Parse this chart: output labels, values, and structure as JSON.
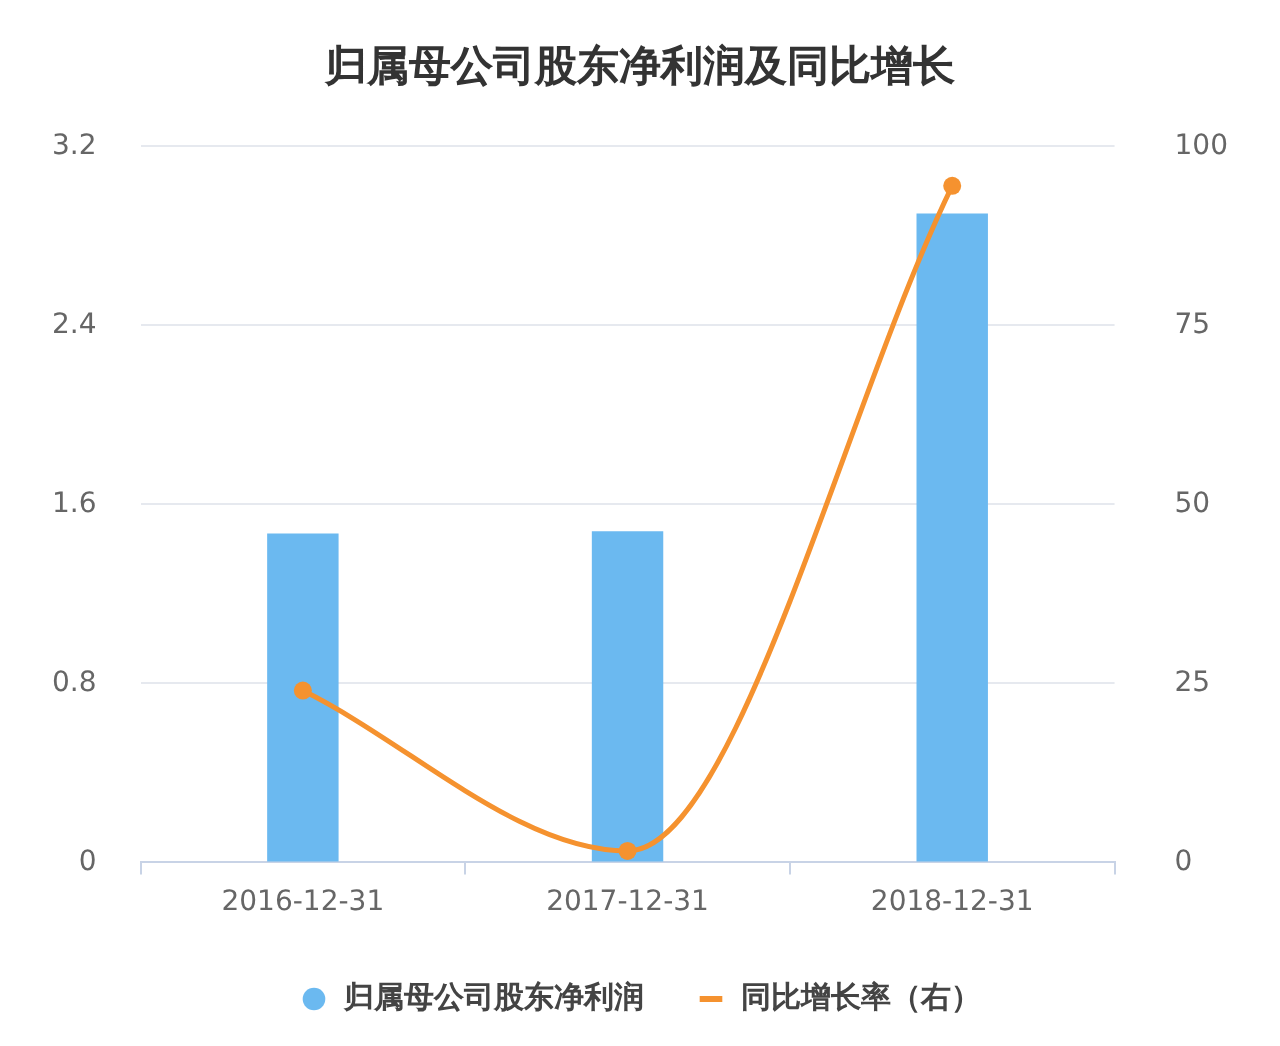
{
  "chart_data": {
    "type": "bar",
    "title": "归属母公司股东净利润及同比增长",
    "categories": [
      "2016-12-31",
      "2017-12-31",
      "2018-12-31"
    ],
    "series": [
      {
        "name": "归属母公司股东净利润",
        "color": "#6bb9f0",
        "values": [
          1.47,
          1.48,
          2.9
        ]
      },
      {
        "name": "同比增长率（右）",
        "type": "line",
        "axis": "y2",
        "color": "#f5922f",
        "values": [
          24,
          1.6,
          94.5
        ]
      }
    ],
    "ylim": [
      0,
      3.2
    ],
    "yticks": [
      0,
      0.8,
      1.6,
      2.4,
      3.2
    ],
    "y2lim": [
      0,
      100
    ],
    "y2ticks": [
      0,
      25,
      50,
      75,
      100
    ],
    "grid": "y",
    "legend": "bottom",
    "marker": "circle",
    "line_style": "solid"
  }
}
